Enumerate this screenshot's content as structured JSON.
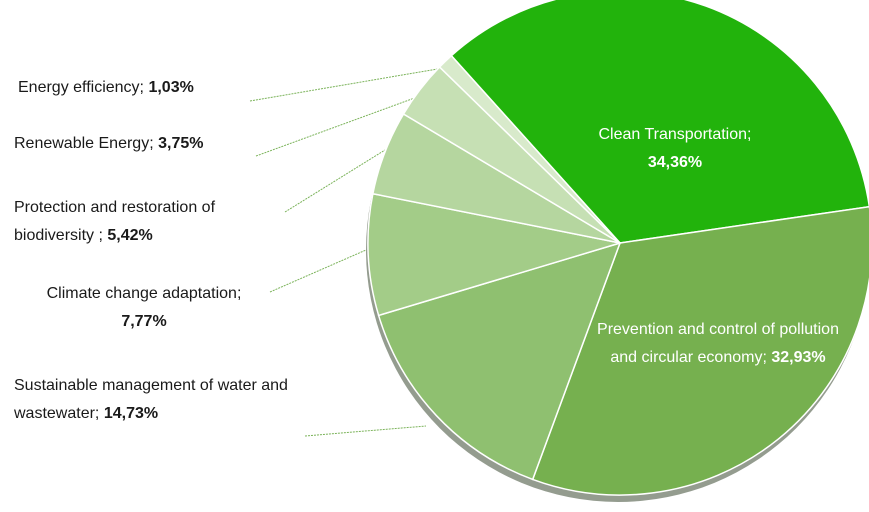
{
  "chart_data": {
    "type": "pie",
    "categories": [
      "Clean Transportation;",
      "Prevention and control of pollution and circular economy;",
      "Sustainable management of water and wastewater;",
      "Climate change adaptation;",
      "Protection and restoration of biodiversity ;",
      "Renewable Energy;",
      "Energy efficiency;"
    ],
    "values": [
      34.36,
      32.93,
      14.73,
      7.77,
      5.42,
      3.75,
      1.03
    ],
    "value_labels": [
      "34,36%",
      "32,93%",
      "14,73%",
      "7,77%",
      "5,42%",
      "3,75%",
      "1,03%"
    ],
    "colors": [
      "#22b30c",
      "#76b04f",
      "#8fc070",
      "#a3cc88",
      "#b5d69f",
      "#c6e0b4",
      "#d8eacb"
    ]
  }
}
